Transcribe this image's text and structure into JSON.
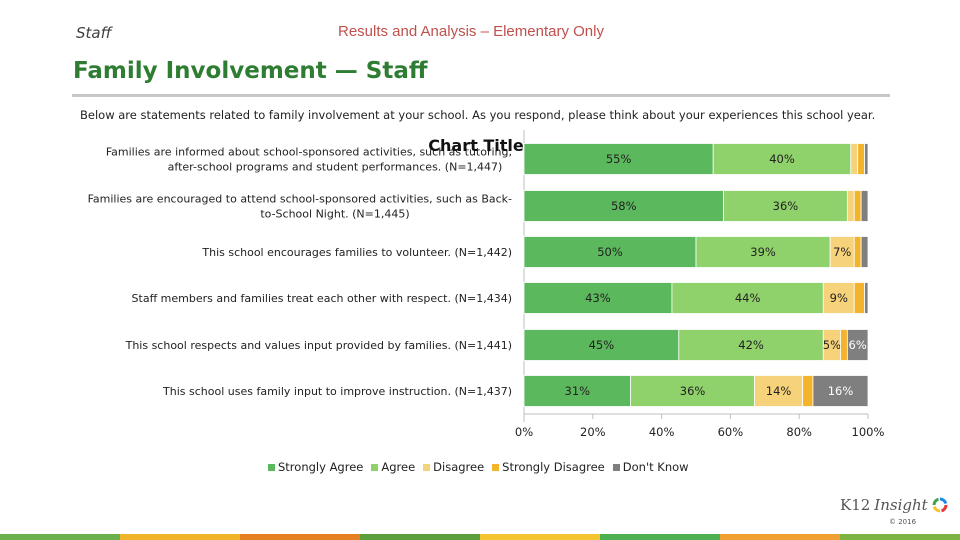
{
  "header": {
    "staff_label": "Staff",
    "center_title": "Results and Analysis – Elementary Only"
  },
  "page": {
    "title": "Family Involvement — Staff",
    "intro": "Below are statements related to family involvement at your school. As you respond, please think about your experiences this school year."
  },
  "chart_data": {
    "type": "bar",
    "orientation": "horizontal-stacked-100",
    "title": "Chart Title",
    "categories": [
      [
        "Families are informed about school-sponsored activities, such as tutoring,",
        "after-school programs and student performances. (N=1,447)"
      ],
      [
        "Families are encouraged to attend school-sponsored activities, such as Back-",
        "to-School Night. (N=1,445)"
      ],
      [
        "This school encourages families to volunteer. (N=1,442)"
      ],
      [
        "Staff members and families treat each other with respect. (N=1,434)"
      ],
      [
        "This school respects and values input provided by families. (N=1,441)"
      ],
      [
        "This school uses family input to improve instruction. (N=1,437)"
      ]
    ],
    "series": [
      {
        "name": "Strongly Agree",
        "color": "#5cb85c",
        "values": [
          55,
          58,
          50,
          43,
          45,
          31
        ],
        "labels": [
          "55%",
          "58%",
          "50%",
          "43%",
          "45%",
          "31%"
        ]
      },
      {
        "name": "Agree",
        "color": "#8fd16a",
        "values": [
          40,
          36,
          39,
          44,
          42,
          36
        ],
        "labels": [
          "40%",
          "36%",
          "39%",
          "44%",
          "42%",
          "36%"
        ]
      },
      {
        "name": "Disagree",
        "color": "#f6d27a",
        "values": [
          2,
          2,
          7,
          9,
          5,
          14
        ],
        "labels": [
          "",
          "",
          "7%",
          "9%",
          "5%",
          "14%"
        ]
      },
      {
        "name": "Strongly Disagree",
        "color": "#f3b42c",
        "values": [
          2,
          2,
          2,
          3,
          2,
          3
        ],
        "labels": [
          "",
          "",
          "",
          "",
          "",
          ""
        ]
      },
      {
        "name": "Don't Know",
        "color": "#7f7f7f",
        "values": [
          1,
          2,
          2,
          1,
          6,
          16
        ],
        "labels": [
          "",
          "",
          "",
          "",
          "6%",
          "16%"
        ]
      }
    ],
    "xticks": [
      "0%",
      "20%",
      "40%",
      "60%",
      "80%",
      "100%"
    ],
    "xlim": [
      0,
      100
    ],
    "legend_placement": "bottom"
  },
  "logo": {
    "k12": "K12",
    "insight": "Insight",
    "colors": [
      "#e53935",
      "#fbc02d",
      "#43a047",
      "#1e88e5"
    ]
  },
  "copyright": "© 2016",
  "footer_colors": [
    "#6ab04c",
    "#f0b429",
    "#e67e22",
    "#5c9e3c",
    "#f4c430",
    "#4caf50",
    "#f0a030",
    "#7cb342"
  ]
}
